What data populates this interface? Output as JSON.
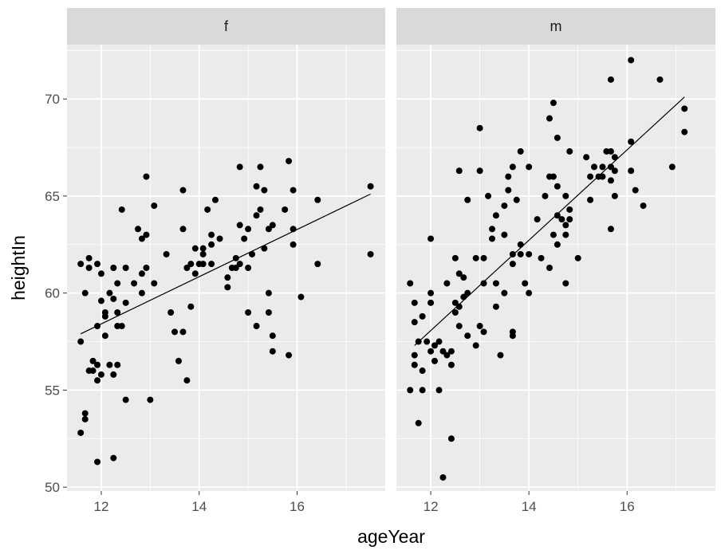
{
  "chart_data": {
    "type": "scatter",
    "xlabel": "ageYear",
    "ylabel": "heightIn",
    "xlim": [
      11.3,
      17.8
    ],
    "ylim": [
      49.8,
      72.8
    ],
    "x_ticks": [
      12,
      14,
      16
    ],
    "y_ticks": [
      50,
      55,
      60,
      65,
      70
    ],
    "grid": true,
    "facets": [
      {
        "label": "f",
        "fit_line": [
          [
            11.58,
            57.9
          ],
          [
            17.5,
            65.1
          ]
        ],
        "points": [
          [
            11.58,
            57.5
          ],
          [
            11.58,
            61.5
          ],
          [
            11.58,
            52.8
          ],
          [
            11.67,
            53.5
          ],
          [
            11.67,
            53.8
          ],
          [
            11.67,
            60.0
          ],
          [
            11.75,
            61.8
          ],
          [
            11.75,
            61.3
          ],
          [
            11.75,
            56.0
          ],
          [
            11.83,
            56.5
          ],
          [
            11.83,
            56.0
          ],
          [
            11.92,
            61.5
          ],
          [
            11.92,
            58.3
          ],
          [
            11.92,
            56.3
          ],
          [
            11.92,
            55.5
          ],
          [
            11.92,
            51.3
          ],
          [
            12.0,
            55.8
          ],
          [
            12.0,
            61.0
          ],
          [
            12.0,
            59.6
          ],
          [
            12.08,
            59.0
          ],
          [
            12.08,
            58.8
          ],
          [
            12.08,
            57.8
          ],
          [
            12.17,
            60.0
          ],
          [
            12.17,
            56.3
          ],
          [
            12.25,
            59.7
          ],
          [
            12.25,
            61.3
          ],
          [
            12.25,
            55.8
          ],
          [
            12.25,
            51.5
          ],
          [
            12.33,
            59.0
          ],
          [
            12.33,
            58.3
          ],
          [
            12.33,
            56.3
          ],
          [
            12.33,
            60.5
          ],
          [
            12.42,
            64.3
          ],
          [
            12.42,
            58.3
          ],
          [
            12.5,
            61.3
          ],
          [
            12.5,
            59.5
          ],
          [
            12.5,
            54.5
          ],
          [
            12.67,
            60.5
          ],
          [
            12.75,
            63.3
          ],
          [
            12.83,
            62.8
          ],
          [
            12.83,
            61.0
          ],
          [
            12.83,
            60.0
          ],
          [
            12.92,
            63.0
          ],
          [
            12.92,
            61.3
          ],
          [
            12.92,
            66.0
          ],
          [
            13.0,
            54.5
          ],
          [
            13.08,
            60.5
          ],
          [
            13.08,
            64.5
          ],
          [
            13.33,
            62.0
          ],
          [
            13.42,
            59.0
          ],
          [
            13.5,
            58.0
          ],
          [
            13.58,
            56.5
          ],
          [
            13.67,
            58.0
          ],
          [
            13.67,
            65.3
          ],
          [
            13.67,
            63.3
          ],
          [
            13.75,
            61.3
          ],
          [
            13.75,
            55.5
          ],
          [
            13.83,
            61.5
          ],
          [
            13.83,
            59.3
          ],
          [
            13.92,
            62.3
          ],
          [
            13.92,
            61.0
          ],
          [
            14.0,
            61.5
          ],
          [
            14.08,
            62.3
          ],
          [
            14.08,
            61.5
          ],
          [
            14.08,
            62.0
          ],
          [
            14.17,
            64.3
          ],
          [
            14.25,
            62.5
          ],
          [
            14.25,
            61.5
          ],
          [
            14.25,
            63.0
          ],
          [
            14.33,
            64.8
          ],
          [
            14.42,
            62.8
          ],
          [
            14.58,
            60.3
          ],
          [
            14.58,
            60.8
          ],
          [
            14.67,
            61.3
          ],
          [
            14.75,
            61.8
          ],
          [
            14.75,
            61.3
          ],
          [
            14.83,
            61.5
          ],
          [
            14.83,
            63.5
          ],
          [
            14.83,
            66.5
          ],
          [
            14.92,
            62.8
          ],
          [
            15.0,
            61.3
          ],
          [
            15.0,
            63.3
          ],
          [
            15.0,
            59.0
          ],
          [
            15.08,
            62.0
          ],
          [
            15.17,
            65.5
          ],
          [
            15.17,
            64.0
          ],
          [
            15.17,
            58.3
          ],
          [
            15.25,
            64.3
          ],
          [
            15.25,
            66.5
          ],
          [
            15.33,
            65.3
          ],
          [
            15.33,
            62.3
          ],
          [
            15.42,
            63.3
          ],
          [
            15.42,
            60.0
          ],
          [
            15.42,
            59.0
          ],
          [
            15.5,
            63.5
          ],
          [
            15.5,
            57.8
          ],
          [
            15.5,
            57.0
          ],
          [
            15.75,
            64.3
          ],
          [
            15.83,
            66.8
          ],
          [
            15.83,
            56.8
          ],
          [
            15.92,
            65.3
          ],
          [
            15.92,
            63.3
          ],
          [
            15.92,
            62.5
          ],
          [
            16.08,
            59.8
          ],
          [
            16.42,
            64.8
          ],
          [
            16.42,
            61.5
          ],
          [
            17.5,
            65.5
          ],
          [
            17.5,
            62.0
          ]
        ]
      },
      {
        "label": "m",
        "fit_line": [
          [
            11.67,
            57.3
          ],
          [
            17.17,
            70.1
          ]
        ],
        "points": [
          [
            11.58,
            60.5
          ],
          [
            11.58,
            55.0
          ],
          [
            11.67,
            59.5
          ],
          [
            11.67,
            56.8
          ],
          [
            11.67,
            56.3
          ],
          [
            11.67,
            58.5
          ],
          [
            11.75,
            53.3
          ],
          [
            11.75,
            57.5
          ],
          [
            11.83,
            58.8
          ],
          [
            11.83,
            56.0
          ],
          [
            11.83,
            55.0
          ],
          [
            11.92,
            57.5
          ],
          [
            12.0,
            62.8
          ],
          [
            12.0,
            57.0
          ],
          [
            12.0,
            59.5
          ],
          [
            12.0,
            60.0
          ],
          [
            12.08,
            57.3
          ],
          [
            12.08,
            56.5
          ],
          [
            12.17,
            55.0
          ],
          [
            12.17,
            57.5
          ],
          [
            12.25,
            50.5
          ],
          [
            12.25,
            57.0
          ],
          [
            12.33,
            60.5
          ],
          [
            12.33,
            56.8
          ],
          [
            12.42,
            52.5
          ],
          [
            12.42,
            56.3
          ],
          [
            12.42,
            57.0
          ],
          [
            12.5,
            61.8
          ],
          [
            12.5,
            59.5
          ],
          [
            12.5,
            59.0
          ],
          [
            12.58,
            66.3
          ],
          [
            12.58,
            61.0
          ],
          [
            12.58,
            58.3
          ],
          [
            12.58,
            59.3
          ],
          [
            12.67,
            60.8
          ],
          [
            12.67,
            59.8
          ],
          [
            12.75,
            64.8
          ],
          [
            12.75,
            60.0
          ],
          [
            12.75,
            57.8
          ],
          [
            12.92,
            61.8
          ],
          [
            12.92,
            57.3
          ],
          [
            13.0,
            68.5
          ],
          [
            13.0,
            66.3
          ],
          [
            13.0,
            58.3
          ],
          [
            13.08,
            61.8
          ],
          [
            13.08,
            60.5
          ],
          [
            13.08,
            58.0
          ],
          [
            13.17,
            65.0
          ],
          [
            13.25,
            62.8
          ],
          [
            13.25,
            63.3
          ],
          [
            13.33,
            64.0
          ],
          [
            13.33,
            60.5
          ],
          [
            13.33,
            59.3
          ],
          [
            13.42,
            56.8
          ],
          [
            13.5,
            64.5
          ],
          [
            13.5,
            63.0
          ],
          [
            13.5,
            60.0
          ],
          [
            13.58,
            66.0
          ],
          [
            13.58,
            65.3
          ],
          [
            13.67,
            66.5
          ],
          [
            13.67,
            62.0
          ],
          [
            13.67,
            61.5
          ],
          [
            13.67,
            58.0
          ],
          [
            13.67,
            57.8
          ],
          [
            13.75,
            64.8
          ],
          [
            13.83,
            67.3
          ],
          [
            13.83,
            62.5
          ],
          [
            13.83,
            62.0
          ],
          [
            13.92,
            60.5
          ],
          [
            14.0,
            66.5
          ],
          [
            14.0,
            62.0
          ],
          [
            14.0,
            60.0
          ],
          [
            14.17,
            63.8
          ],
          [
            14.25,
            61.8
          ],
          [
            14.33,
            65.0
          ],
          [
            14.42,
            66.0
          ],
          [
            14.42,
            61.3
          ],
          [
            14.5,
            69.8
          ],
          [
            14.42,
            69.0
          ],
          [
            14.5,
            66.0
          ],
          [
            14.5,
            63.0
          ],
          [
            14.58,
            68.0
          ],
          [
            14.58,
            65.5
          ],
          [
            14.58,
            64.0
          ],
          [
            14.58,
            62.5
          ],
          [
            14.67,
            63.8
          ],
          [
            14.75,
            65.0
          ],
          [
            14.75,
            63.5
          ],
          [
            14.75,
            63.0
          ],
          [
            14.75,
            60.5
          ],
          [
            14.83,
            67.3
          ],
          [
            14.83,
            64.3
          ],
          [
            14.83,
            63.8
          ],
          [
            15.0,
            61.8
          ],
          [
            15.17,
            67.0
          ],
          [
            15.25,
            66.0
          ],
          [
            15.25,
            64.8
          ],
          [
            15.33,
            66.5
          ],
          [
            15.42,
            66.0
          ],
          [
            15.5,
            66.5
          ],
          [
            15.5,
            66.0
          ],
          [
            15.58,
            67.3
          ],
          [
            15.67,
            71.0
          ],
          [
            15.67,
            67.3
          ],
          [
            15.67,
            66.5
          ],
          [
            15.67,
            65.8
          ],
          [
            15.67,
            63.3
          ],
          [
            15.75,
            67.0
          ],
          [
            15.75,
            66.3
          ],
          [
            15.75,
            65.0
          ],
          [
            16.08,
            72.0
          ],
          [
            16.08,
            67.8
          ],
          [
            16.08,
            66.3
          ],
          [
            16.17,
            65.3
          ],
          [
            16.33,
            64.5
          ],
          [
            16.67,
            71.0
          ],
          [
            16.92,
            66.5
          ],
          [
            17.17,
            69.5
          ],
          [
            17.17,
            68.3
          ]
        ]
      }
    ]
  }
}
